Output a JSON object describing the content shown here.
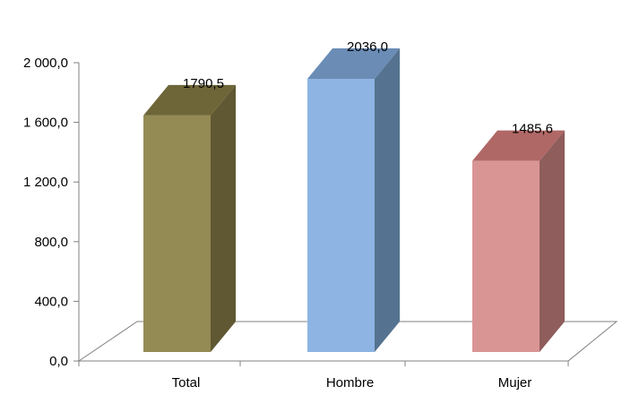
{
  "chart_data": {
    "type": "bar",
    "categories": [
      "Total",
      "Hombre",
      "Mujer"
    ],
    "values": [
      1790.5,
      2036.0,
      1485.6
    ],
    "data_labels": [
      "1790,5",
      "2036,0",
      "1485,6"
    ],
    "ylim": [
      0,
      2000
    ],
    "y_ticks": [
      0,
      400,
      800,
      1200,
      1600,
      2000
    ],
    "y_tick_labels": [
      "0,0",
      "400,0",
      "800,0",
      "1 200,0",
      "1 600,0",
      "2 000,0"
    ],
    "grid": false,
    "legend": "none",
    "style": "3d-bar",
    "colors": {
      "Total": {
        "front": "#948A54",
        "side": "#5F5832",
        "top": "#6E6538"
      },
      "Hombre": {
        "front": "#8DB4E2",
        "side": "#557390",
        "top": "#6A8CB5"
      },
      "Mujer": {
        "front": "#D99594",
        "side": "#8E5D5C",
        "top": "#B06866"
      },
      "axis": "#808080",
      "floor": "#808080"
    }
  }
}
